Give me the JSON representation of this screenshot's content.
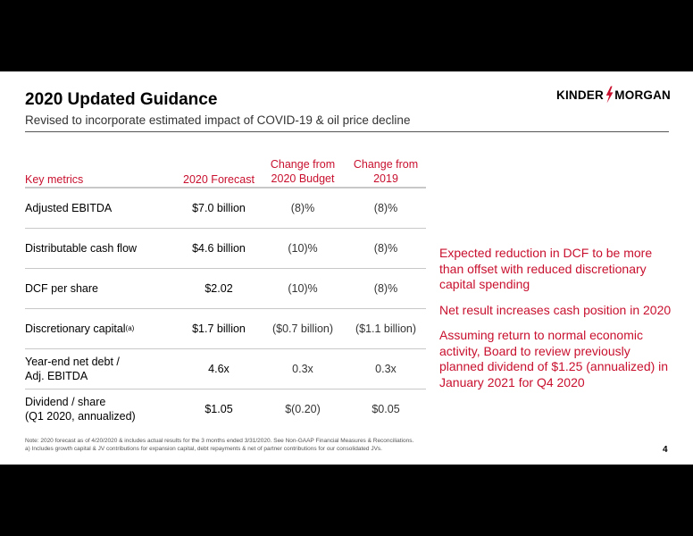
{
  "header": {
    "title": "2020 Updated Guidance",
    "subtitle": "Revised to incorporate estimated impact of COVID-19 & oil price decline",
    "logo_left": "KINDER",
    "logo_right": "MORGAN"
  },
  "table": {
    "columns": {
      "metric": "Key metrics",
      "forecast": "2020 Forecast",
      "budget_line1": "Change from",
      "budget_line2": "2020 Budget",
      "y2019_line1": "Change from",
      "y2019_line2": "2019"
    },
    "rows": [
      {
        "metric": "Adjusted EBITDA",
        "metric_line2": "",
        "sup": "",
        "forecast": "$7.0 billion",
        "budget": "(8)%",
        "y2019": "(8)%"
      },
      {
        "metric": "Distributable cash flow",
        "metric_line2": "",
        "sup": "",
        "forecast": "$4.6 billion",
        "budget": "(10)%",
        "y2019": "(8)%"
      },
      {
        "metric": "DCF per share",
        "metric_line2": "",
        "sup": "",
        "forecast": "$2.02",
        "budget": "(10)%",
        "y2019": "(8)%"
      },
      {
        "metric": "Discretionary capital",
        "metric_line2": "",
        "sup": "(a)",
        "forecast": "$1.7 billion",
        "budget": "($0.7 billion)",
        "y2019": "($1.1 billion)"
      },
      {
        "metric": "Year-end net debt /",
        "metric_line2": "Adj. EBITDA",
        "sup": "",
        "forecast": "4.6x",
        "budget": "0.3x",
        "y2019": "0.3x"
      },
      {
        "metric": "Dividend / share",
        "metric_line2": "(Q1 2020, annualized)",
        "sup": "",
        "forecast": "$1.05",
        "budget": "$(0.20)",
        "y2019": "$0.05"
      }
    ]
  },
  "bullets": [
    "Expected reduction in DCF to be more than offset with reduced discretionary capital spending",
    "Net result increases cash position in 2020",
    "Assuming return to normal economic activity, Board to review previously planned dividend of $1.25 (annualized) in January 2021 for Q4 2020"
  ],
  "footer": {
    "note_line1": "Note: 2020 forecast as of 4/20/2020 & includes actual results for the 3 months  ended 3/31/2020. See Non-GAAP Financial Measures & Reconciliations.",
    "note_line2": "a) Includes growth capital & JV contributions for expansion capital, debt repayments & net of partner contributions for our consolidated JVs.",
    "page_number": "4"
  },
  "colors": {
    "accent": "#c8102e",
    "background": "#000000",
    "slide": "#ffffff"
  },
  "icons": [
    "lightning-bolt-icon"
  ]
}
